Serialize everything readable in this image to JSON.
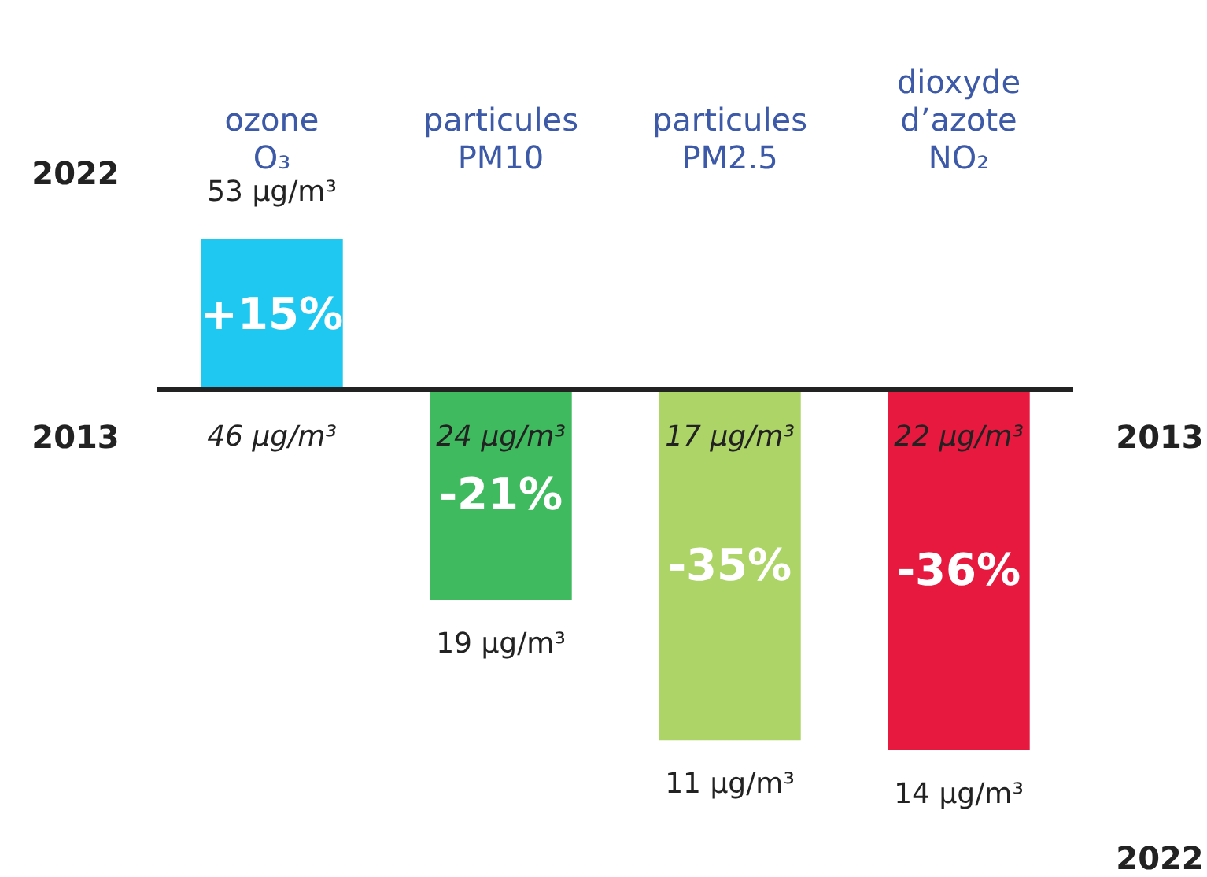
{
  "chart_data": {
    "type": "bar",
    "categories": [
      "ozone\nO₃",
      "particules\nPM10",
      "particules\nPM2.5",
      "dioxyde\nd’azote\nNO₂"
    ],
    "values": [
      15,
      -21,
      -35,
      -36
    ],
    "colors": [
      "#1ec8f0",
      "#3fba5f",
      "#add466",
      "#e8193f"
    ],
    "value_labels": [
      "+15%",
      "-21%",
      "-35%",
      "-36%"
    ],
    "annotations": [
      {
        "text": "53 µg/m³",
        "x": "ozone\nO₃",
        "y": 15
      },
      {
        "text": "46 µg/m³",
        "x": "ozone\nO₃",
        "y": 0
      },
      {
        "text": "24 µg/m³",
        "x": "particules\nPM10",
        "y": 0
      },
      {
        "text": "17 µg/m³",
        "x": "particules\nPM2.5",
        "y": 0
      },
      {
        "text": "22 µg/m³",
        "x": "dioxyde\nd’azote\nNO₂",
        "y": 0
      },
      {
        "text": "19 µg/m³",
        "x": "particules\nPM10",
        "y": -21
      },
      {
        "text": "11 µg/m³",
        "x": "particules\nPM2.5",
        "y": -35
      },
      {
        "text": "14 µg/m³",
        "x": "dioxyde\nd’azote\nNO₂",
        "y": -36
      },
      "2022",
      "2013",
      "2013",
      "2022"
    ],
    "ref_lines": [
      {
        "axis": "y",
        "value": 0,
        "color": "#222222"
      }
    ],
    "grid": false
  }
}
